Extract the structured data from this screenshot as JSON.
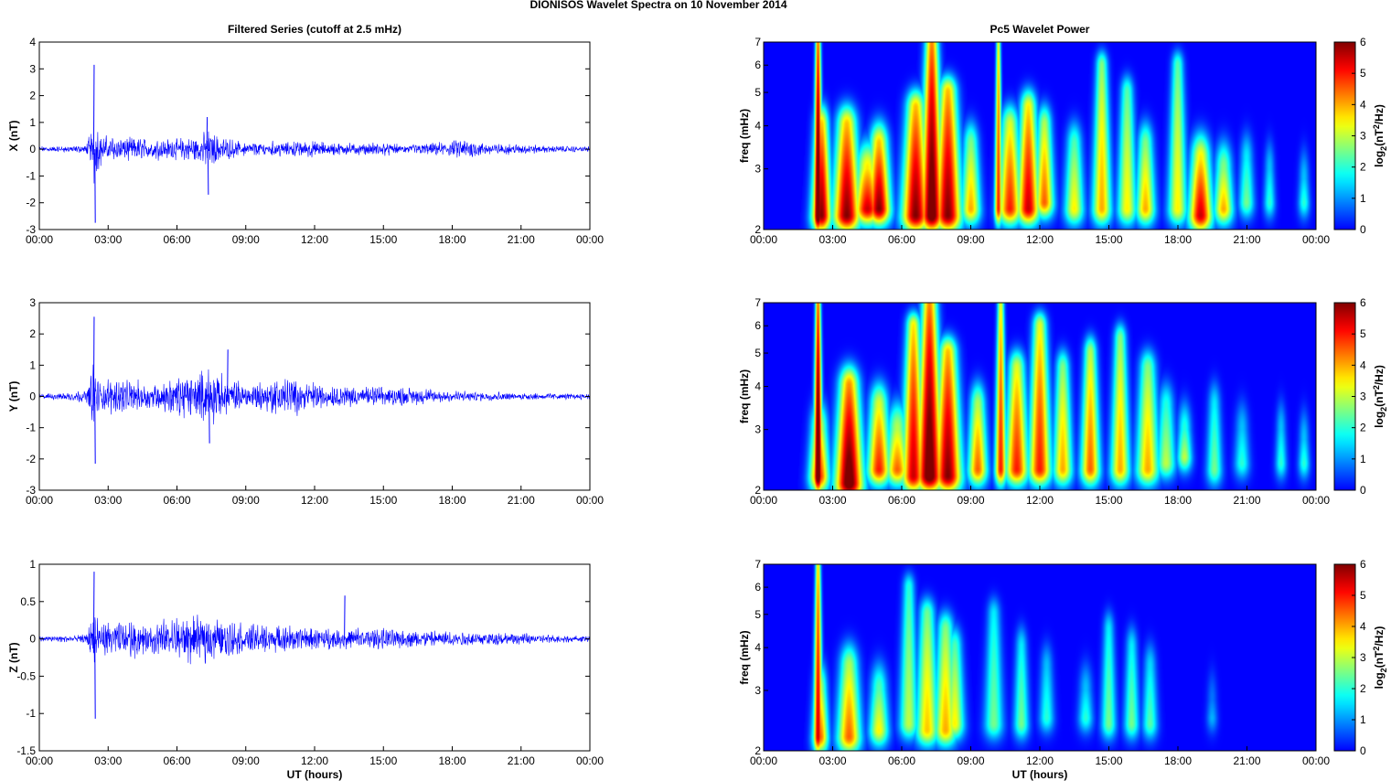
{
  "figure": {
    "title": "DIONISOS Wavelet Spectra on 10 November  2014",
    "left_column_title": "Filtered Series (cutoff at 2.5 mHz)",
    "right_column_title": "Pc5 Wavelet Power",
    "xlabel": "UT (hours)"
  },
  "chart_data": [
    {
      "type": "line",
      "component": "X",
      "ylabel": "X (nT)",
      "xlim_hours": [
        0,
        24
      ],
      "ylim": [
        -3,
        4
      ],
      "x_ticks": [
        "00:00",
        "03:00",
        "06:00",
        "09:00",
        "12:00",
        "15:00",
        "18:00",
        "21:00",
        "00:00"
      ],
      "y_ticks": [
        "4",
        "3",
        "2",
        "1",
        "0",
        "-1",
        "-2",
        "-3"
      ],
      "y_tick_values": [
        4,
        3,
        2,
        1,
        0,
        -1,
        -2,
        -3
      ],
      "color": "#0000ff",
      "envelope": {
        "t_hours": [
          0,
          1,
          2,
          2.3,
          2.4,
          2.6,
          3,
          4,
          5,
          6,
          7,
          7.3,
          8,
          9,
          10,
          11,
          12,
          13,
          14,
          15,
          16,
          17,
          18,
          18.5,
          19,
          20,
          21,
          22,
          23,
          24
        ],
        "amplitude": [
          0.12,
          0.12,
          0.15,
          0.8,
          1.6,
          0.7,
          0.5,
          0.45,
          0.4,
          0.4,
          0.55,
          0.8,
          0.45,
          0.3,
          0.3,
          0.3,
          0.35,
          0.25,
          0.25,
          0.25,
          0.2,
          0.25,
          0.3,
          0.45,
          0.3,
          0.2,
          0.2,
          0.15,
          0.12,
          0.1
        ]
      },
      "spikes": [
        {
          "t_hours": 2.37,
          "value": 3.15
        },
        {
          "t_hours": 2.42,
          "value": -2.75
        },
        {
          "t_hours": 7.3,
          "value": 1.2
        },
        {
          "t_hours": 7.35,
          "value": -1.7
        }
      ]
    },
    {
      "type": "heatmap",
      "component": "X",
      "ylabel": "freq (mHz)",
      "colorbar_label": "log2(nT2/Hz)",
      "xlim_hours": [
        0,
        24
      ],
      "ylim_mhz": [
        2,
        7
      ],
      "y_scale": "log",
      "clim": [
        0,
        6
      ],
      "x_ticks": [
        "00:00",
        "03:00",
        "06:00",
        "09:00",
        "12:00",
        "15:00",
        "18:00",
        "21:00",
        "00:00"
      ],
      "y_ticks": [
        "7",
        "6",
        "5",
        "4",
        "3",
        "2"
      ],
      "y_tick_values": [
        7,
        6,
        5,
        4,
        3,
        2
      ],
      "colorbar_ticks": [
        "6",
        "5",
        "4",
        "3",
        "2",
        "1",
        "0"
      ],
      "bursts": [
        {
          "t": 2.35,
          "peak": 6.8,
          "width": 0.12,
          "reach": 7,
          "low": 2.2
        },
        {
          "t": 2.5,
          "peak": 6,
          "width": 0.25,
          "reach": 4,
          "low": 2.2
        },
        {
          "t": 3.6,
          "peak": 6,
          "width": 0.35,
          "reach": 4,
          "low": 2.2
        },
        {
          "t": 4.5,
          "peak": 5.5,
          "width": 0.35,
          "reach": 3,
          "low": 2.3
        },
        {
          "t": 5.0,
          "peak": 6,
          "width": 0.3,
          "reach": 3.5,
          "low": 2.3
        },
        {
          "t": 6.6,
          "peak": 6,
          "width": 0.35,
          "reach": 4.5,
          "low": 2.2
        },
        {
          "t": 7.3,
          "peak": 6.5,
          "width": 0.3,
          "reach": 7,
          "low": 2.2
        },
        {
          "t": 8.0,
          "peak": 6,
          "width": 0.35,
          "reach": 5,
          "low": 2.2
        },
        {
          "t": 9.0,
          "peak": 4,
          "width": 0.25,
          "reach": 3.5,
          "low": 2.3
        },
        {
          "t": 10.2,
          "peak": 5,
          "width": 0.1,
          "reach": 7,
          "low": 2.3
        },
        {
          "t": 10.7,
          "peak": 5,
          "width": 0.3,
          "reach": 4,
          "low": 2.3
        },
        {
          "t": 11.5,
          "peak": 5.5,
          "width": 0.3,
          "reach": 4.5,
          "low": 2.3
        },
        {
          "t": 12.2,
          "peak": 4.5,
          "width": 0.25,
          "reach": 4,
          "low": 2.4
        },
        {
          "t": 13.5,
          "peak": 3.5,
          "width": 0.25,
          "reach": 3.5,
          "low": 2.3
        },
        {
          "t": 14.7,
          "peak": 4,
          "width": 0.25,
          "reach": 6,
          "low": 2.3
        },
        {
          "t": 15.8,
          "peak": 3.5,
          "width": 0.25,
          "reach": 5,
          "low": 2.3
        },
        {
          "t": 16.6,
          "peak": 4,
          "width": 0.25,
          "reach": 3.5,
          "low": 2.3
        },
        {
          "t": 18.0,
          "peak": 3.5,
          "width": 0.25,
          "reach": 6,
          "low": 2.3
        },
        {
          "t": 19.0,
          "peak": 5.5,
          "width": 0.3,
          "reach": 3.2,
          "low": 2.2
        },
        {
          "t": 20.0,
          "peak": 4,
          "width": 0.25,
          "reach": 3,
          "low": 2.3
        },
        {
          "t": 21.0,
          "peak": 2.5,
          "width": 0.2,
          "reach": 3.2,
          "low": 2.4
        },
        {
          "t": 22.0,
          "peak": 2,
          "width": 0.15,
          "reach": 3,
          "low": 2.4
        },
        {
          "t": 23.5,
          "peak": 2,
          "width": 0.15,
          "reach": 2.8,
          "low": 2.4
        }
      ]
    },
    {
      "type": "line",
      "component": "Y",
      "ylabel": "Y (nT)",
      "xlim_hours": [
        0,
        24
      ],
      "ylim": [
        -3,
        3
      ],
      "x_ticks": [
        "00:00",
        "03:00",
        "06:00",
        "09:00",
        "12:00",
        "15:00",
        "18:00",
        "21:00",
        "00:00"
      ],
      "y_ticks": [
        "3",
        "2",
        "1",
        "0",
        "-1",
        "-2",
        "-3"
      ],
      "y_tick_values": [
        3,
        2,
        1,
        0,
        -1,
        -2,
        -3
      ],
      "color": "#0000ff",
      "envelope": {
        "t_hours": [
          0,
          1,
          2,
          2.3,
          2.4,
          2.6,
          3,
          4,
          5,
          6,
          7,
          7.5,
          8,
          9,
          10,
          11,
          12,
          13,
          14,
          15,
          16,
          17,
          18,
          19,
          20,
          21,
          22,
          23,
          24
        ],
        "amplitude": [
          0.1,
          0.12,
          0.2,
          0.8,
          1.4,
          0.5,
          0.6,
          0.5,
          0.5,
          0.6,
          0.9,
          1.0,
          0.7,
          0.4,
          0.6,
          0.6,
          0.45,
          0.35,
          0.35,
          0.3,
          0.3,
          0.25,
          0.2,
          0.15,
          0.15,
          0.12,
          0.12,
          0.1,
          0.1
        ]
      },
      "spikes": [
        {
          "t_hours": 2.37,
          "value": 2.55
        },
        {
          "t_hours": 2.42,
          "value": -2.15
        },
        {
          "t_hours": 8.2,
          "value": 1.5
        },
        {
          "t_hours": 7.4,
          "value": -1.5
        }
      ]
    },
    {
      "type": "heatmap",
      "component": "Y",
      "ylabel": "freq (mHz)",
      "colorbar_label": "log2(nT2/Hz)",
      "xlim_hours": [
        0,
        24
      ],
      "ylim_mhz": [
        2,
        7
      ],
      "y_scale": "log",
      "clim": [
        0,
        6
      ],
      "x_ticks": [
        "00:00",
        "03:00",
        "06:00",
        "09:00",
        "12:00",
        "15:00",
        "18:00",
        "21:00",
        "00:00"
      ],
      "y_ticks": [
        "7",
        "6",
        "5",
        "4",
        "3",
        "2"
      ],
      "y_tick_values": [
        7,
        6,
        5,
        4,
        3,
        2
      ],
      "colorbar_ticks": [
        "6",
        "5",
        "4",
        "3",
        "2",
        "1",
        "0"
      ],
      "bursts": [
        {
          "t": 2.35,
          "peak": 6.8,
          "width": 0.12,
          "reach": 7,
          "low": 2.2
        },
        {
          "t": 2.4,
          "peak": 5,
          "width": 0.25,
          "reach": 3,
          "low": 2.2
        },
        {
          "t": 3.7,
          "peak": 6.5,
          "width": 0.35,
          "reach": 4,
          "low": 2.1
        },
        {
          "t": 5.0,
          "peak": 5,
          "width": 0.3,
          "reach": 3.5,
          "low": 2.3
        },
        {
          "t": 5.8,
          "peak": 4.5,
          "width": 0.3,
          "reach": 3,
          "low": 2.3
        },
        {
          "t": 6.5,
          "peak": 5.5,
          "width": 0.3,
          "reach": 6,
          "low": 2.2
        },
        {
          "t": 7.2,
          "peak": 6.5,
          "width": 0.35,
          "reach": 7,
          "low": 2.2
        },
        {
          "t": 8.0,
          "peak": 6,
          "width": 0.35,
          "reach": 5,
          "low": 2.2
        },
        {
          "t": 9.3,
          "peak": 4.5,
          "width": 0.25,
          "reach": 3.5,
          "low": 2.3
        },
        {
          "t": 10.3,
          "peak": 5,
          "width": 0.15,
          "reach": 7,
          "low": 2.3
        },
        {
          "t": 11.0,
          "peak": 5,
          "width": 0.3,
          "reach": 4.5,
          "low": 2.3
        },
        {
          "t": 12.0,
          "peak": 5,
          "width": 0.3,
          "reach": 6,
          "low": 2.3
        },
        {
          "t": 13.0,
          "peak": 4,
          "width": 0.25,
          "reach": 4.5,
          "low": 2.3
        },
        {
          "t": 14.2,
          "peak": 4.5,
          "width": 0.25,
          "reach": 5,
          "low": 2.3
        },
        {
          "t": 15.5,
          "peak": 4,
          "width": 0.25,
          "reach": 5.5,
          "low": 2.3
        },
        {
          "t": 16.7,
          "peak": 4,
          "width": 0.3,
          "reach": 4.5,
          "low": 2.3
        },
        {
          "t": 17.5,
          "peak": 3,
          "width": 0.25,
          "reach": 3.5,
          "low": 2.4
        },
        {
          "t": 18.3,
          "peak": 3,
          "width": 0.2,
          "reach": 3,
          "low": 2.5
        },
        {
          "t": 19.6,
          "peak": 2.5,
          "width": 0.2,
          "reach": 3.5,
          "low": 2.3
        },
        {
          "t": 20.8,
          "peak": 2,
          "width": 0.2,
          "reach": 3,
          "low": 2.4
        },
        {
          "t": 22.5,
          "peak": 2,
          "width": 0.15,
          "reach": 3,
          "low": 2.4
        },
        {
          "t": 23.5,
          "peak": 2,
          "width": 0.15,
          "reach": 2.8,
          "low": 2.4
        }
      ]
    },
    {
      "type": "line",
      "component": "Z",
      "ylabel": "Z (nT)",
      "xlabel": "UT (hours)",
      "xlim_hours": [
        0,
        24
      ],
      "ylim": [
        -1.5,
        1
      ],
      "x_ticks": [
        "00:00",
        "03:00",
        "06:00",
        "09:00",
        "12:00",
        "15:00",
        "18:00",
        "21:00",
        "00:00"
      ],
      "y_ticks": [
        "1",
        "0.5",
        "0",
        "-0.5",
        "-1",
        "-1.5"
      ],
      "y_tick_values": [
        1,
        0.5,
        0,
        -0.5,
        -1,
        -1.5
      ],
      "color": "#0000ff",
      "envelope": {
        "t_hours": [
          0,
          1,
          2,
          2.3,
          2.4,
          2.6,
          3,
          4,
          5,
          6,
          7,
          8,
          9,
          10,
          11,
          12,
          13,
          14,
          15,
          16,
          17,
          18,
          19,
          20,
          21,
          22,
          23,
          24
        ],
        "amplitude": [
          0.04,
          0.05,
          0.06,
          0.3,
          0.5,
          0.2,
          0.22,
          0.25,
          0.22,
          0.3,
          0.35,
          0.3,
          0.2,
          0.2,
          0.18,
          0.15,
          0.15,
          0.15,
          0.14,
          0.12,
          0.12,
          0.1,
          0.1,
          0.09,
          0.08,
          0.06,
          0.05,
          0.05
        ]
      },
      "spikes": [
        {
          "t_hours": 2.37,
          "value": 0.9
        },
        {
          "t_hours": 2.42,
          "value": -1.07
        },
        {
          "t_hours": 13.3,
          "value": 0.58
        }
      ]
    },
    {
      "type": "heatmap",
      "component": "Z",
      "ylabel": "freq (mHz)",
      "xlabel": "UT (hours)",
      "colorbar_label": "log2(nT2/Hz)",
      "xlim_hours": [
        0,
        24
      ],
      "ylim_mhz": [
        2,
        7
      ],
      "y_scale": "log",
      "clim": [
        0,
        6
      ],
      "x_ticks": [
        "00:00",
        "03:00",
        "06:00",
        "09:00",
        "12:00",
        "15:00",
        "18:00",
        "21:00",
        "00:00"
      ],
      "y_ticks": [
        "7",
        "6",
        "5",
        "4",
        "3",
        "2"
      ],
      "y_tick_values": [
        7,
        6,
        5,
        4,
        3,
        2
      ],
      "colorbar_ticks": [
        "6",
        "5",
        "4",
        "3",
        "2",
        "1",
        "0"
      ],
      "bursts": [
        {
          "t": 2.35,
          "peak": 5.5,
          "width": 0.12,
          "reach": 7,
          "low": 2.2
        },
        {
          "t": 2.45,
          "peak": 4.5,
          "width": 0.2,
          "reach": 3,
          "low": 2.2
        },
        {
          "t": 3.7,
          "peak": 4.5,
          "width": 0.3,
          "reach": 3.5,
          "low": 2.2
        },
        {
          "t": 5.0,
          "peak": 3.5,
          "width": 0.25,
          "reach": 3,
          "low": 2.3
        },
        {
          "t": 6.3,
          "peak": 3,
          "width": 0.25,
          "reach": 6,
          "low": 2.4
        },
        {
          "t": 7.1,
          "peak": 3.8,
          "width": 0.3,
          "reach": 5,
          "low": 2.3
        },
        {
          "t": 7.9,
          "peak": 4,
          "width": 0.3,
          "reach": 4.5,
          "low": 2.3
        },
        {
          "t": 8.3,
          "peak": 3.5,
          "width": 0.25,
          "reach": 4,
          "low": 2.4
        },
        {
          "t": 10.0,
          "peak": 2.5,
          "width": 0.25,
          "reach": 5,
          "low": 2.4
        },
        {
          "t": 11.2,
          "peak": 2.5,
          "width": 0.2,
          "reach": 4,
          "low": 2.4
        },
        {
          "t": 12.3,
          "peak": 2,
          "width": 0.2,
          "reach": 3.5,
          "low": 2.5
        },
        {
          "t": 14.0,
          "peak": 2,
          "width": 0.2,
          "reach": 3,
          "low": 2.5
        },
        {
          "t": 15.0,
          "peak": 2.5,
          "width": 0.2,
          "reach": 4.5,
          "low": 2.4
        },
        {
          "t": 16.0,
          "peak": 2.5,
          "width": 0.2,
          "reach": 4,
          "low": 2.4
        },
        {
          "t": 16.8,
          "peak": 2.3,
          "width": 0.2,
          "reach": 3.5,
          "low": 2.4
        },
        {
          "t": 19.5,
          "peak": 1.2,
          "width": 0.15,
          "reach": 2.8,
          "low": 2.5
        }
      ]
    }
  ]
}
